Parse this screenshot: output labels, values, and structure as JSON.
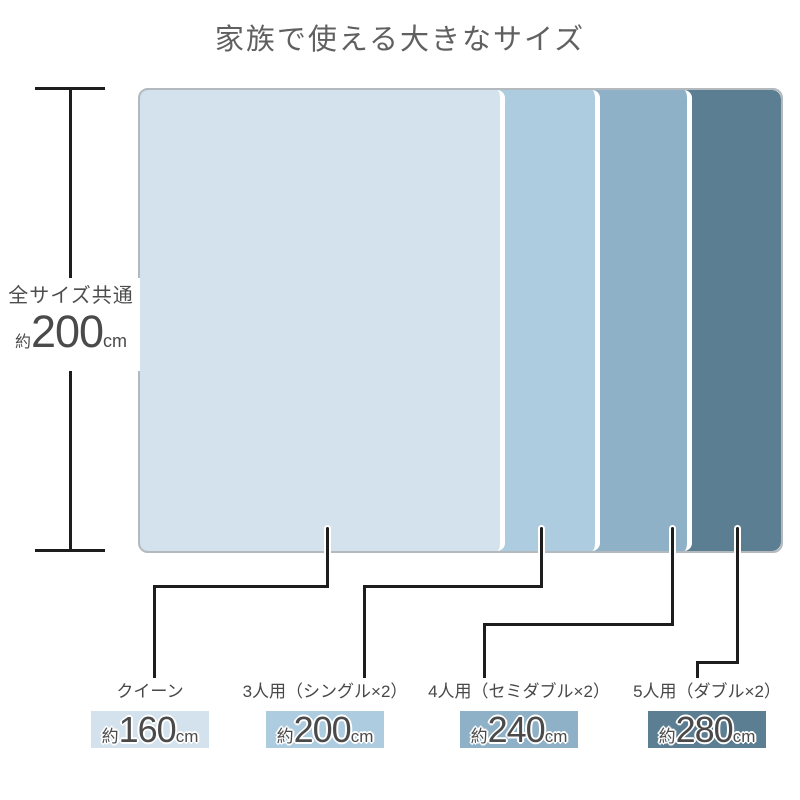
{
  "title": "家族で使える大きなサイズ",
  "common_height": {
    "label": "全サイズ共通",
    "approx": "約",
    "value": "200",
    "unit": "cm"
  },
  "sizes": [
    {
      "name": "クイーン",
      "approx": "約",
      "value": "160",
      "unit": "cm",
      "color": "#d3e2ec",
      "width_cm": 160,
      "height_cm": 200
    },
    {
      "name": "3人用（シングル×2）",
      "approx": "約",
      "value": "200",
      "unit": "cm",
      "color": "#aecce0",
      "width_cm": 200,
      "height_cm": 200
    },
    {
      "name": "4人用（セミダブル×2）",
      "approx": "約",
      "value": "240",
      "unit": "cm",
      "color": "#8fb1c7",
      "width_cm": 240,
      "height_cm": 200
    },
    {
      "name": "5人用（ダブル×2）",
      "approx": "約",
      "value": "280",
      "unit": "cm",
      "color": "#5b7e93",
      "width_cm": 280,
      "height_cm": 200
    }
  ],
  "colors": {
    "background": "#ffffff",
    "frame_border": "#b3b9bd",
    "line": "#1d1d1d",
    "title_text": "#606060",
    "label_text": "#484848",
    "badge_text": "#4a4a4a"
  }
}
